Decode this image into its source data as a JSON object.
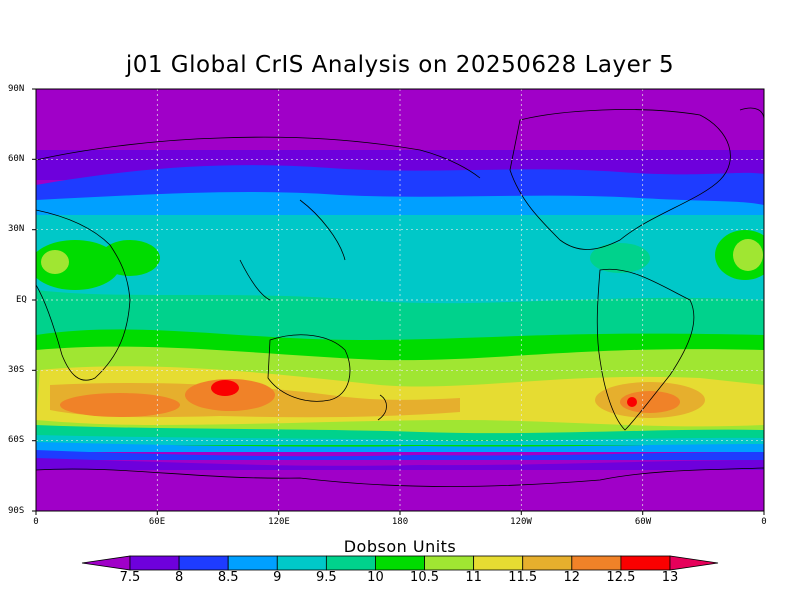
{
  "title": "j01 Global CrIS Analysis on 20250628 Layer 5",
  "map": {
    "lat_labels": [
      "90N",
      "60N",
      "30N",
      "EQ",
      "30S",
      "60S",
      "90S"
    ],
    "lon_labels": [
      "0",
      "60E",
      "120E",
      "180",
      "120W",
      "60W",
      "0"
    ],
    "gridlines": "dotted"
  },
  "colorbar": {
    "title": "Dobson Units",
    "ticks": [
      "7.5",
      "8",
      "8.5",
      "9",
      "9.5",
      "10",
      "10.5",
      "11",
      "11.5",
      "12",
      "12.5",
      "13"
    ],
    "colors": [
      "#a000c8",
      "#6e00dc",
      "#1e3cff",
      "#00a0ff",
      "#00c8c8",
      "#00d28c",
      "#00dc00",
      "#a0e632",
      "#e6dc32",
      "#e6af2d",
      "#f08228",
      "#fa0000",
      "#e6005a"
    ]
  },
  "map_data": {
    "type": "heatmap",
    "variable": "Dobson Units",
    "lat_range": [
      -90,
      90
    ],
    "lon_range": [
      0,
      360
    ],
    "bands": [
      {
        "lat": [
          60,
          90
        ],
        "value": 7.4
      },
      {
        "lat": [
          50,
          60
        ],
        "value": 8.3
      },
      {
        "lat": [
          40,
          50
        ],
        "value": 8.8
      },
      {
        "lat": [
          10,
          40
        ],
        "value": 9.6
      },
      {
        "lat": [
          -10,
          10
        ],
        "value": 9.8
      },
      {
        "lat": [
          -25,
          -10
        ],
        "value": 10.6
      },
      {
        "lat": [
          -45,
          -25
        ],
        "value": 11.6
      },
      {
        "lat": [
          -55,
          -45
        ],
        "value": 10.2
      },
      {
        "lat": [
          -65,
          -55
        ],
        "value": 8.6
      },
      {
        "lat": [
          -90,
          -65
        ],
        "value": 7.4
      }
    ],
    "maxima": [
      {
        "lat": -37,
        "lon": 95,
        "value": 12.8
      },
      {
        "lat": -41,
        "lon": 300,
        "value": 12.3
      },
      {
        "lat": -40,
        "lon": 30,
        "value": 12.1
      }
    ]
  }
}
